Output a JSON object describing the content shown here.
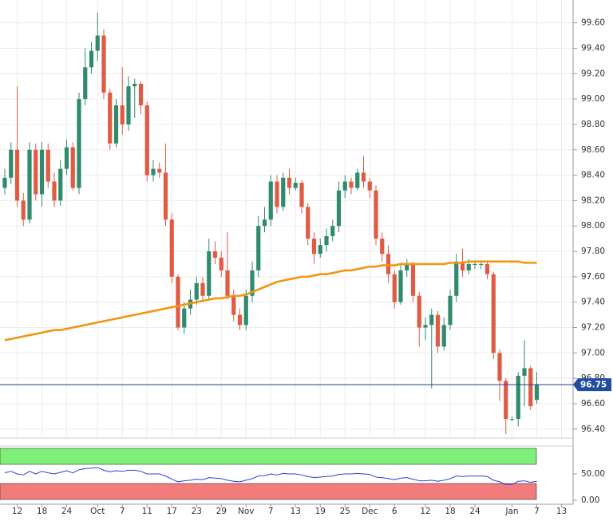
{
  "chart_data": {
    "type": "candlestick",
    "categories": [
      null,
      null,
      "12",
      null,
      null,
      null,
      "18",
      null,
      null,
      null,
      "24",
      null,
      null,
      null,
      null,
      "Oct",
      null,
      null,
      null,
      "7",
      null,
      null,
      null,
      "11",
      null,
      null,
      null,
      "17",
      null,
      null,
      null,
      "23",
      null,
      null,
      null,
      "29",
      null,
      null,
      null,
      "Nov",
      null,
      null,
      null,
      "7",
      null,
      null,
      null,
      "13",
      null,
      null,
      null,
      "19",
      null,
      null,
      null,
      "25",
      null,
      null,
      null,
      "Dec",
      null,
      null,
      null,
      "6",
      null,
      null,
      null,
      null,
      "12",
      null,
      null,
      null,
      "18",
      null,
      null,
      null,
      "24",
      null,
      null,
      null,
      null,
      null,
      "Jan",
      null,
      null,
      null,
      "7",
      null,
      null,
      null,
      "13"
    ],
    "open": [
      98.3,
      98.38,
      98.6,
      98.2,
      98.05,
      98.6,
      98.25,
      98.6,
      98.35,
      98.2,
      98.45,
      98.62,
      98.3,
      99.0,
      99.25,
      99.38,
      99.5,
      99.05,
      98.65,
      98.95,
      98.8,
      99.1,
      99.12,
      98.95,
      98.4,
      98.45,
      98.42,
      98.05,
      97.6,
      97.2,
      97.35,
      97.42,
      97.55,
      97.45,
      97.8,
      97.75,
      97.65,
      97.45,
      97.3,
      97.22,
      97.45,
      97.65,
      98.0,
      98.05,
      98.35,
      98.15,
      98.38,
      98.3,
      98.34,
      98.15,
      97.9,
      97.78,
      97.85,
      97.92,
      98.0,
      98.28,
      98.35,
      98.3,
      98.42,
      98.35,
      98.28,
      97.9,
      97.78,
      97.62,
      97.4,
      97.65,
      97.7,
      97.45,
      97.2,
      97.22,
      97.3,
      97.05,
      97.22,
      97.45,
      97.72,
      97.65,
      97.7,
      97.7,
      97.7,
      97.62,
      97.0,
      96.78,
      96.48,
      96.48,
      96.82,
      96.88,
      96.63,
      null,
      null,
      null,
      null
    ],
    "high": [
      98.45,
      98.66,
      99.1,
      98.26,
      98.66,
      98.65,
      98.66,
      98.65,
      98.42,
      98.52,
      98.68,
      98.66,
      99.05,
      99.4,
      99.45,
      99.68,
      99.55,
      99.08,
      99.0,
      99.25,
      99.18,
      99.16,
      99.14,
      98.98,
      98.52,
      98.5,
      98.65,
      98.1,
      97.62,
      97.4,
      97.5,
      97.6,
      97.6,
      97.9,
      97.88,
      97.8,
      97.95,
      97.5,
      97.35,
      97.5,
      97.72,
      98.08,
      98.15,
      98.4,
      98.4,
      98.42,
      98.45,
      98.38,
      98.36,
      98.18,
      97.95,
      97.9,
      97.98,
      98.05,
      98.35,
      98.4,
      98.38,
      98.45,
      98.55,
      98.38,
      98.32,
      97.95,
      97.85,
      97.65,
      97.7,
      97.74,
      97.72,
      97.48,
      97.28,
      97.35,
      97.33,
      97.28,
      97.5,
      97.78,
      97.82,
      97.74,
      97.73,
      97.73,
      97.72,
      97.64,
      97.03,
      96.8,
      96.5,
      96.85,
      97.1,
      96.9,
      96.85,
      null,
      null,
      null,
      null
    ],
    "low": [
      98.25,
      98.33,
      98.15,
      98.0,
      98.02,
      98.2,
      98.15,
      98.3,
      98.15,
      98.16,
      98.4,
      98.28,
      98.25,
      98.95,
      99.2,
      99.3,
      99.0,
      98.6,
      98.62,
      98.72,
      98.75,
      98.85,
      98.88,
      98.35,
      98.35,
      98.38,
      98.0,
      97.55,
      97.18,
      97.15,
      97.3,
      97.38,
      97.4,
      97.42,
      97.7,
      97.6,
      97.42,
      97.25,
      97.18,
      97.18,
      97.4,
      97.6,
      97.95,
      98.0,
      98.1,
      98.12,
      98.25,
      98.28,
      98.1,
      97.85,
      97.7,
      97.75,
      97.8,
      97.88,
      97.95,
      98.22,
      98.25,
      98.28,
      98.3,
      98.22,
      97.85,
      97.72,
      97.55,
      97.35,
      97.38,
      97.6,
      97.4,
      97.05,
      97.1,
      96.72,
      97.0,
      97.02,
      97.18,
      97.4,
      97.6,
      97.62,
      97.66,
      97.66,
      97.58,
      96.95,
      96.62,
      96.36,
      96.46,
      96.42,
      96.58,
      96.55,
      96.6,
      null,
      null,
      null,
      null
    ],
    "close": [
      98.38,
      98.6,
      98.2,
      98.05,
      98.6,
      98.25,
      98.6,
      98.35,
      98.2,
      98.45,
      98.62,
      98.3,
      99.0,
      99.25,
      99.38,
      99.5,
      99.05,
      98.65,
      98.95,
      98.8,
      99.1,
      99.12,
      98.95,
      98.4,
      98.45,
      98.42,
      98.05,
      97.6,
      97.2,
      97.35,
      97.42,
      97.55,
      97.45,
      97.8,
      97.75,
      97.65,
      97.45,
      97.3,
      97.22,
      97.45,
      97.65,
      98.0,
      98.05,
      98.35,
      98.15,
      98.38,
      98.3,
      98.34,
      98.15,
      97.9,
      97.78,
      97.85,
      97.92,
      98.0,
      98.28,
      98.35,
      98.3,
      98.42,
      98.35,
      98.28,
      97.9,
      97.78,
      97.62,
      97.4,
      97.65,
      97.7,
      97.45,
      97.2,
      97.22,
      97.3,
      97.05,
      97.22,
      97.45,
      97.72,
      97.65,
      97.7,
      97.7,
      97.7,
      97.62,
      97.0,
      96.78,
      96.48,
      96.48,
      96.82,
      96.88,
      96.58,
      96.75,
      null,
      null,
      null,
      null
    ],
    "up_color": "#2f8a6e",
    "down_color": "#e05a44",
    "moving_average": {
      "color": "#f0960f",
      "values": [
        97.1,
        97.11,
        97.12,
        97.13,
        97.14,
        97.15,
        97.16,
        97.17,
        97.18,
        97.18,
        97.19,
        97.2,
        97.21,
        97.22,
        97.23,
        97.24,
        97.25,
        97.26,
        97.27,
        97.28,
        97.29,
        97.3,
        97.31,
        97.32,
        97.33,
        97.34,
        97.35,
        97.36,
        97.37,
        97.38,
        97.39,
        97.4,
        97.41,
        97.42,
        97.43,
        97.43,
        97.44,
        97.45,
        97.45,
        97.46,
        97.48,
        97.5,
        97.52,
        97.54,
        97.56,
        97.57,
        97.58,
        97.59,
        97.6,
        97.6,
        97.61,
        97.62,
        97.62,
        97.63,
        97.64,
        97.65,
        97.65,
        97.66,
        97.67,
        97.68,
        97.68,
        97.69,
        97.69,
        97.69,
        97.7,
        97.7,
        97.7,
        97.7,
        97.7,
        97.7,
        97.7,
        97.7,
        97.71,
        97.71,
        97.71,
        97.72,
        97.72,
        97.72,
        97.72,
        97.72,
        97.72,
        97.72,
        97.72,
        97.72,
        97.71,
        97.71,
        97.71,
        null,
        null,
        null,
        null
      ]
    },
    "last_price": 96.75,
    "ylim": [
      96.336,
      99.78
    ],
    "yticks": [
      {
        "value": 96.4,
        "label": "96.40"
      },
      {
        "value": 96.6,
        "label": "96.60"
      },
      {
        "value": 96.8,
        "label": "96.80"
      },
      {
        "value": 97.0,
        "label": "97.00"
      },
      {
        "value": 97.2,
        "label": "97.20"
      },
      {
        "value": 97.4,
        "label": "97.40"
      },
      {
        "value": 97.6,
        "label": "97.60"
      },
      {
        "value": 97.8,
        "label": "97.80"
      },
      {
        "value": 98.0,
        "label": "98.00"
      },
      {
        "value": 98.2,
        "label": "98.20"
      },
      {
        "value": 98.4,
        "label": "98.40"
      },
      {
        "value": 98.6,
        "label": "98.60"
      },
      {
        "value": 98.8,
        "label": "98.80"
      },
      {
        "value": 99.0,
        "label": "99.00"
      },
      {
        "value": 99.2,
        "label": "99.20"
      },
      {
        "value": 99.4,
        "label": "99.40"
      },
      {
        "value": 99.6,
        "label": "99.60"
      }
    ],
    "grid": true,
    "oscillator": {
      "color": "#2b40d8",
      "ylim": [
        -7.6,
        101.5
      ],
      "yticks": [
        {
          "value": 0,
          "label": "0.00"
        },
        {
          "value": 50,
          "label": "50.00"
        }
      ],
      "values": [
        52,
        55,
        50,
        48,
        55,
        50,
        55,
        52,
        50,
        53,
        56,
        52,
        58,
        60,
        61,
        62,
        57,
        54,
        56,
        55,
        57,
        57,
        55,
        50,
        50,
        50,
        46,
        40,
        35,
        37,
        38,
        40,
        39,
        43,
        42,
        41,
        38,
        36,
        35,
        38,
        41,
        46,
        47,
        50,
        48,
        51,
        50,
        50,
        48,
        45,
        43,
        44,
        45,
        46,
        49,
        50,
        50,
        51,
        50,
        49,
        44,
        43,
        41,
        39,
        42,
        43,
        40,
        37,
        37,
        38,
        36,
        38,
        41,
        46,
        45,
        46,
        46,
        46,
        45,
        38,
        35,
        30,
        30,
        36,
        37,
        34,
        36,
        null,
        null,
        null,
        null
      ]
    }
  }
}
